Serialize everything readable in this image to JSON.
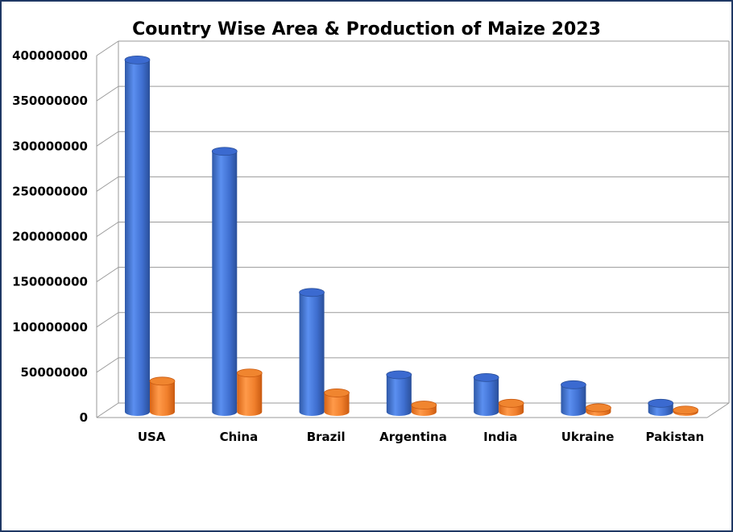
{
  "chart_data": {
    "type": "bar",
    "title": "Country Wise Area & Production of Maize 2023",
    "categories": [
      "USA",
      "China",
      "Brazil",
      "Argentina",
      "India",
      "Ukraine",
      "Pakistan"
    ],
    "series": [
      {
        "values": [
          389000000,
          288000000,
          132000000,
          41000000,
          38000000,
          30000000,
          9500000
        ],
        "color": "#4472c4"
      },
      {
        "values": [
          34000000,
          43000000,
          21000000,
          7500000,
          9500000,
          4500000,
          2000000
        ],
        "color": "#ed7d31"
      }
    ],
    "ylim": [
      0,
      400000000
    ],
    "yticks": [
      "0",
      "50000000",
      "100000000",
      "150000000",
      "200000000",
      "250000000",
      "300000000",
      "350000000",
      "400000000"
    ],
    "xlabel": "",
    "ylabel": "",
    "grid": true,
    "bar_shape": "3d-cylinder"
  }
}
